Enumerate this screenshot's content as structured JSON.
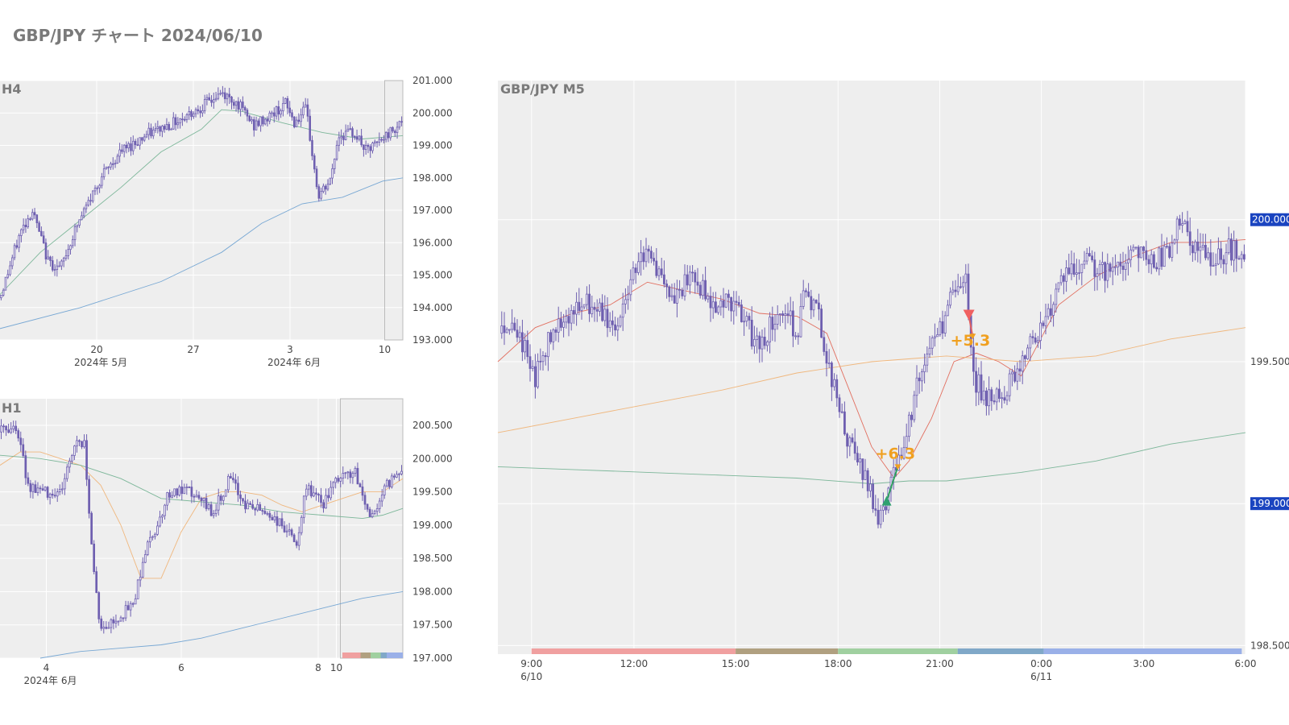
{
  "title": "GBP/JPY チャート 2024/06/10",
  "colors": {
    "candle": "#6e5fb0",
    "panel_bg": "#eeeeee",
    "grid": "#ffffff",
    "ma_short": "#e06050",
    "ma_mid": "#f0b070",
    "ma_long": "#70b090",
    "ma_vlong": "#6aa0d0",
    "trade_label": "#f0a020",
    "price_tag": "#1a44c0"
  },
  "chart_data": [
    {
      "id": "h4",
      "type": "candlestick",
      "title": "H4",
      "ylim": [
        193.0,
        201.0
      ],
      "y_ticks": [
        {
          "v": 193.0,
          "label": "193.000"
        },
        {
          "v": 194.0,
          "label": "194.000"
        },
        {
          "v": 195.0,
          "label": "195.000"
        },
        {
          "v": 196.0,
          "label": "196.000"
        },
        {
          "v": 197.0,
          "label": "197.000"
        },
        {
          "v": 198.0,
          "label": "198.000"
        },
        {
          "v": 199.0,
          "label": "199.000"
        },
        {
          "v": 200.0,
          "label": "200.000"
        },
        {
          "v": 201.0,
          "label": "201.000"
        }
      ],
      "x_ticks": [
        {
          "t": 0.24,
          "label": "20",
          "sub": "2024年 5月"
        },
        {
          "t": 0.48,
          "label": "27",
          "sub": ""
        },
        {
          "t": 0.72,
          "label": "3",
          "sub": "2024年 6月"
        },
        {
          "t": 0.955,
          "label": "10",
          "sub": ""
        }
      ],
      "highlight_range": [
        0.955,
        1.0
      ],
      "price_path": [
        [
          0,
          194.3
        ],
        [
          0.05,
          196.3
        ],
        [
          0.08,
          197.0
        ],
        [
          0.12,
          195.4
        ],
        [
          0.15,
          195.2
        ],
        [
          0.19,
          196.5
        ],
        [
          0.25,
          198.0
        ],
        [
          0.3,
          198.8
        ],
        [
          0.36,
          199.3
        ],
        [
          0.43,
          199.7
        ],
        [
          0.5,
          200.2
        ],
        [
          0.55,
          200.6
        ],
        [
          0.59,
          200.3
        ],
        [
          0.63,
          199.6
        ],
        [
          0.67,
          199.9
        ],
        [
          0.71,
          200.3
        ],
        [
          0.73,
          199.7
        ],
        [
          0.76,
          200.1
        ],
        [
          0.79,
          197.4
        ],
        [
          0.82,
          197.9
        ],
        [
          0.84,
          199.3
        ],
        [
          0.88,
          199.4
        ],
        [
          0.91,
          198.8
        ],
        [
          0.95,
          199.2
        ],
        [
          1.0,
          199.8
        ]
      ],
      "ma_lines": [
        {
          "key": "ma_long",
          "points": [
            [
              0,
              194.4
            ],
            [
              0.1,
              195.7
            ],
            [
              0.2,
              196.7
            ],
            [
              0.3,
              197.7
            ],
            [
              0.4,
              198.8
            ],
            [
              0.5,
              199.5
            ],
            [
              0.55,
              200.1
            ],
            [
              0.6,
              200.05
            ],
            [
              0.7,
              199.7
            ],
            [
              0.8,
              199.4
            ],
            [
              0.9,
              199.2
            ],
            [
              1.0,
              199.3
            ]
          ]
        },
        {
          "key": "ma_vlong",
          "points": [
            [
              0,
              193.35
            ],
            [
              0.2,
              194.0
            ],
            [
              0.4,
              194.8
            ],
            [
              0.55,
              195.7
            ],
            [
              0.65,
              196.6
            ],
            [
              0.75,
              197.2
            ],
            [
              0.85,
              197.4
            ],
            [
              0.95,
              197.9
            ],
            [
              1.0,
              198.0
            ]
          ]
        }
      ]
    },
    {
      "id": "h1",
      "type": "candlestick",
      "title": "H1",
      "ylim": [
        197.0,
        200.9
      ],
      "y_ticks": [
        {
          "v": 197.0,
          "label": "197.000"
        },
        {
          "v": 197.5,
          "label": "197.500"
        },
        {
          "v": 198.0,
          "label": "198.000"
        },
        {
          "v": 198.5,
          "label": "198.500"
        },
        {
          "v": 199.0,
          "label": "199.000"
        },
        {
          "v": 199.5,
          "label": "199.500"
        },
        {
          "v": 200.0,
          "label": "200.000"
        },
        {
          "v": 200.5,
          "label": "200.500"
        }
      ],
      "x_ticks": [
        {
          "t": 0.115,
          "label": "4",
          "sub": "2024年 6月"
        },
        {
          "t": 0.45,
          "label": "6",
          "sub": ""
        },
        {
          "t": 0.79,
          "label": "8",
          "sub": ""
        },
        {
          "t": 0.835,
          "label": "10",
          "sub": ""
        }
      ],
      "highlight_range": [
        0.845,
        1.0
      ],
      "session_bar": [
        {
          "from": 0.85,
          "to": 0.895,
          "color": "#f0a0a0"
        },
        {
          "from": 0.895,
          "to": 0.92,
          "color": "#b0a080"
        },
        {
          "from": 0.92,
          "to": 0.945,
          "color": "#a0d0a0"
        },
        {
          "from": 0.945,
          "to": 0.96,
          "color": "#80a8c8"
        },
        {
          "from": 0.96,
          "to": 1.0,
          "color": "#9ab0e8"
        }
      ],
      "price_path": [
        [
          0,
          200.4
        ],
        [
          0.04,
          200.5
        ],
        [
          0.07,
          199.6
        ],
        [
          0.11,
          199.5
        ],
        [
          0.15,
          199.5
        ],
        [
          0.19,
          200.3
        ],
        [
          0.21,
          200.2
        ],
        [
          0.23,
          198.5
        ],
        [
          0.25,
          197.4
        ],
        [
          0.29,
          197.6
        ],
        [
          0.33,
          197.8
        ],
        [
          0.36,
          198.6
        ],
        [
          0.39,
          199.0
        ],
        [
          0.42,
          199.5
        ],
        [
          0.47,
          199.5
        ],
        [
          0.53,
          199.2
        ],
        [
          0.57,
          199.7
        ],
        [
          0.61,
          199.3
        ],
        [
          0.66,
          199.2
        ],
        [
          0.7,
          199.0
        ],
        [
          0.74,
          198.7
        ],
        [
          0.76,
          199.6
        ],
        [
          0.8,
          199.3
        ],
        [
          0.84,
          199.7
        ],
        [
          0.88,
          199.8
        ],
        [
          0.92,
          199.1
        ],
        [
          0.96,
          199.6
        ],
        [
          1.0,
          199.9
        ]
      ],
      "ma_lines": [
        {
          "key": "ma_mid",
          "points": [
            [
              0,
              199.9
            ],
            [
              0.05,
              200.1
            ],
            [
              0.1,
              200.1
            ],
            [
              0.15,
              200.0
            ],
            [
              0.2,
              199.9
            ],
            [
              0.25,
              199.6
            ],
            [
              0.3,
              199.0
            ],
            [
              0.35,
              198.2
            ],
            [
              0.4,
              198.2
            ],
            [
              0.45,
              198.9
            ],
            [
              0.5,
              199.4
            ],
            [
              0.55,
              199.5
            ],
            [
              0.6,
              199.5
            ],
            [
              0.65,
              199.45
            ],
            [
              0.7,
              199.3
            ],
            [
              0.75,
              199.2
            ],
            [
              0.8,
              199.3
            ],
            [
              0.85,
              199.4
            ],
            [
              0.9,
              199.5
            ],
            [
              0.95,
              199.5
            ],
            [
              1.0,
              199.7
            ]
          ]
        },
        {
          "key": "ma_long",
          "points": [
            [
              0,
              200.05
            ],
            [
              0.1,
              200.0
            ],
            [
              0.2,
              199.9
            ],
            [
              0.3,
              199.7
            ],
            [
              0.4,
              199.4
            ],
            [
              0.5,
              199.35
            ],
            [
              0.6,
              199.3
            ],
            [
              0.7,
              199.2
            ],
            [
              0.8,
              199.15
            ],
            [
              0.9,
              199.1
            ],
            [
              0.95,
              199.15
            ],
            [
              1.0,
              199.25
            ]
          ]
        },
        {
          "key": "ma_vlong",
          "points": [
            [
              0.1,
              197.0
            ],
            [
              0.2,
              197.1
            ],
            [
              0.3,
              197.15
            ],
            [
              0.4,
              197.2
            ],
            [
              0.5,
              197.3
            ],
            [
              0.6,
              197.45
            ],
            [
              0.7,
              197.6
            ],
            [
              0.8,
              197.75
            ],
            [
              0.9,
              197.9
            ],
            [
              1.0,
              198.0
            ]
          ]
        }
      ]
    },
    {
      "id": "m5",
      "type": "candlestick",
      "title": "GBP/JPY M5",
      "ylim": [
        198.47,
        200.49
      ],
      "y_ticks": [
        {
          "v": 198.5,
          "label": "198.500"
        },
        {
          "v": 199.5,
          "label": "199.500"
        }
      ],
      "price_tags": [
        {
          "v": 200.0,
          "label": "200.000"
        },
        {
          "v": 199.0,
          "label": "199.000"
        }
      ],
      "x_ticks": [
        {
          "t": 0.045,
          "label": "9:00",
          "sub": "6/10"
        },
        {
          "t": 0.182,
          "label": "12:00",
          "sub": ""
        },
        {
          "t": 0.318,
          "label": "15:00",
          "sub": ""
        },
        {
          "t": 0.455,
          "label": "18:00",
          "sub": ""
        },
        {
          "t": 0.591,
          "label": "21:00",
          "sub": ""
        },
        {
          "t": 0.727,
          "label": "0:00",
          "sub": "6/11"
        },
        {
          "t": 0.864,
          "label": "3:00",
          "sub": ""
        },
        {
          "t": 1.0,
          "label": "6:00",
          "sub": ""
        }
      ],
      "session_bar": [
        {
          "from": 0.045,
          "to": 0.318,
          "color": "#f0a0a0"
        },
        {
          "from": 0.318,
          "to": 0.455,
          "color": "#b0a080"
        },
        {
          "from": 0.455,
          "to": 0.615,
          "color": "#a0d0a0"
        },
        {
          "from": 0.615,
          "to": 0.73,
          "color": "#80a8c8"
        },
        {
          "from": 0.73,
          "to": 0.995,
          "color": "#9ab0e8"
        }
      ],
      "price_path": [
        [
          0,
          199.6
        ],
        [
          0.02,
          199.65
        ],
        [
          0.05,
          199.45
        ],
        [
          0.08,
          199.65
        ],
        [
          0.12,
          199.7
        ],
        [
          0.16,
          199.62
        ],
        [
          0.19,
          199.9
        ],
        [
          0.21,
          199.85
        ],
        [
          0.23,
          199.7
        ],
        [
          0.26,
          199.8
        ],
        [
          0.29,
          199.7
        ],
        [
          0.31,
          199.72
        ],
        [
          0.35,
          199.55
        ],
        [
          0.38,
          199.7
        ],
        [
          0.4,
          199.6
        ],
        [
          0.41,
          199.75
        ],
        [
          0.43,
          199.65
        ],
        [
          0.45,
          199.4
        ],
        [
          0.47,
          199.2
        ],
        [
          0.49,
          199.1
        ],
        [
          0.51,
          198.95
        ],
        [
          0.53,
          199.1
        ],
        [
          0.55,
          199.3
        ],
        [
          0.57,
          199.5
        ],
        [
          0.59,
          199.6
        ],
        [
          0.61,
          199.75
        ],
        [
          0.625,
          199.8
        ],
        [
          0.635,
          199.45
        ],
        [
          0.66,
          199.35
        ],
        [
          0.68,
          199.4
        ],
        [
          0.7,
          199.5
        ],
        [
          0.72,
          199.6
        ],
        [
          0.74,
          199.7
        ],
        [
          0.76,
          199.8
        ],
        [
          0.79,
          199.85
        ],
        [
          0.82,
          199.8
        ],
        [
          0.85,
          199.9
        ],
        [
          0.88,
          199.85
        ],
        [
          0.9,
          199.9
        ],
        [
          0.91,
          200.0
        ],
        [
          0.93,
          199.9
        ],
        [
          0.96,
          199.85
        ],
        [
          0.98,
          199.9
        ],
        [
          1.0,
          199.85
        ]
      ],
      "ma_lines": [
        {
          "key": "ma_short",
          "points": [
            [
              0,
              199.5
            ],
            [
              0.05,
              199.62
            ],
            [
              0.1,
              199.67
            ],
            [
              0.15,
              199.7
            ],
            [
              0.2,
              199.78
            ],
            [
              0.25,
              199.75
            ],
            [
              0.3,
              199.72
            ],
            [
              0.35,
              199.67
            ],
            [
              0.4,
              199.66
            ],
            [
              0.44,
              199.6
            ],
            [
              0.47,
              199.4
            ],
            [
              0.5,
              199.2
            ],
            [
              0.53,
              199.09
            ],
            [
              0.55,
              199.15
            ],
            [
              0.58,
              199.3
            ],
            [
              0.61,
              199.5
            ],
            [
              0.64,
              199.53
            ],
            [
              0.67,
              199.5
            ],
            [
              0.7,
              199.45
            ],
            [
              0.72,
              199.55
            ],
            [
              0.75,
              199.7
            ],
            [
              0.8,
              199.8
            ],
            [
              0.85,
              199.87
            ],
            [
              0.9,
              199.92
            ],
            [
              0.95,
              199.92
            ],
            [
              1.0,
              199.93
            ]
          ]
        },
        {
          "key": "ma_mid",
          "points": [
            [
              0,
              199.25
            ],
            [
              0.1,
              199.3
            ],
            [
              0.2,
              199.35
            ],
            [
              0.3,
              199.4
            ],
            [
              0.4,
              199.46
            ],
            [
              0.5,
              199.5
            ],
            [
              0.6,
              199.52
            ],
            [
              0.7,
              199.5
            ],
            [
              0.8,
              199.52
            ],
            [
              0.9,
              199.58
            ],
            [
              1.0,
              199.62
            ]
          ]
        },
        {
          "key": "ma_long",
          "points": [
            [
              0,
              199.13
            ],
            [
              0.1,
              199.12
            ],
            [
              0.2,
              199.11
            ],
            [
              0.3,
              199.1
            ],
            [
              0.4,
              199.09
            ],
            [
              0.5,
              199.07
            ],
            [
              0.55,
              199.08
            ],
            [
              0.6,
              199.08
            ],
            [
              0.7,
              199.11
            ],
            [
              0.8,
              199.15
            ],
            [
              0.9,
              199.21
            ],
            [
              1.0,
              199.25
            ]
          ]
        }
      ],
      "trades": [
        {
          "type": "buy",
          "t": 0.52,
          "price": 199.01,
          "exit_t": 0.535,
          "exit_price": 199.13,
          "label": "+6.3"
        },
        {
          "type": "sell",
          "t": 0.63,
          "price": 199.66,
          "exit_t": 0.635,
          "exit_price": 199.59,
          "label": "+5.3"
        }
      ]
    }
  ]
}
